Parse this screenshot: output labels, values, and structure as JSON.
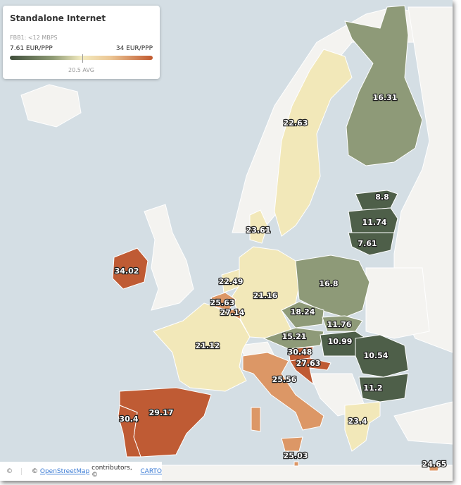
{
  "legend": {
    "title": "Standalone Internet",
    "subtitle": "FBB1: <12 MBPS",
    "min_label": "7.61 EUR/PPP",
    "max_label": "34 EUR/PPP",
    "avg_label": "20.5 AVG",
    "colors": {
      "low": "#3f4e3b",
      "mid": "#f3ebc0",
      "high": "#c1592f"
    }
  },
  "attribution": {
    "leaflet_symbol": "©",
    "prefix": "©",
    "osm_link": "OpenStreetMap",
    "middle": "contributors, ©",
    "carto_link": "CARTO"
  },
  "regions": [
    {
      "name": "Finland",
      "value": "16.31"
    },
    {
      "name": "Sweden",
      "value": "22.63"
    },
    {
      "name": "Estonia",
      "value": "8.8"
    },
    {
      "name": "Latvia",
      "value": "11.74"
    },
    {
      "name": "Lithuania",
      "value": "7.61"
    },
    {
      "name": "Denmark",
      "value": "23.61"
    },
    {
      "name": "Ireland",
      "value": "34.02"
    },
    {
      "name": "Netherlands",
      "value": "22.49"
    },
    {
      "name": "Germany",
      "value": "21.16"
    },
    {
      "name": "Belgium",
      "value": "25.63"
    },
    {
      "name": "Luxembourg",
      "value": "27.14"
    },
    {
      "name": "Poland",
      "value": "16.8"
    },
    {
      "name": "Czechia",
      "value": "18.24"
    },
    {
      "name": "Slovakia",
      "value": "11.76"
    },
    {
      "name": "Austria",
      "value": "15.21"
    },
    {
      "name": "Hungary",
      "value": "10.99"
    },
    {
      "name": "France",
      "value": "21.12"
    },
    {
      "name": "Slovenia",
      "value": "30.48"
    },
    {
      "name": "Croatia",
      "value": "27.63"
    },
    {
      "name": "Romania",
      "value": "10.54"
    },
    {
      "name": "Bulgaria",
      "value": "11.2"
    },
    {
      "name": "Italy",
      "value": "25.56"
    },
    {
      "name": "Spain",
      "value": "29.17"
    },
    {
      "name": "Portugal",
      "value": "30.4"
    },
    {
      "name": "Greece",
      "value": "23.4"
    },
    {
      "name": "Malta",
      "value": "25.03"
    },
    {
      "name": "Cyprus",
      "value": "24.65"
    }
  ]
}
